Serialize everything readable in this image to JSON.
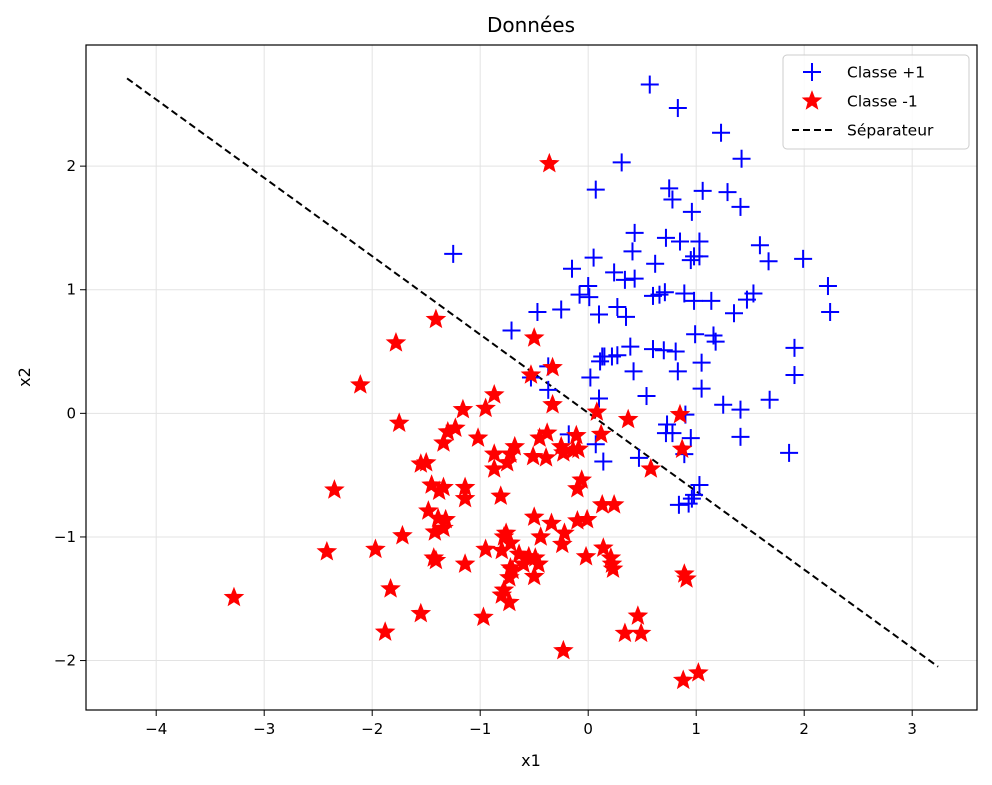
{
  "chart_data": {
    "type": "scatter",
    "title": "Données",
    "xlabel": "x1",
    "ylabel": "x2",
    "xlim": [
      -4.65,
      3.6
    ],
    "ylim": [
      -2.4,
      2.98
    ],
    "xticks": [
      -4,
      -3,
      -2,
      -1,
      0,
      1,
      2,
      3
    ],
    "yticks": [
      -2,
      -1,
      0,
      1,
      2
    ],
    "grid": true,
    "legend_position": "top-right",
    "series": [
      {
        "name": "Classe +1",
        "marker": "plus",
        "color": "#0000ff",
        "points": [
          [
            0.57,
            2.66
          ],
          [
            0.83,
            2.47
          ],
          [
            1.23,
            2.27
          ],
          [
            0.31,
            2.03
          ],
          [
            1.42,
            2.06
          ],
          [
            0.07,
            1.81
          ],
          [
            0.75,
            1.82
          ],
          [
            0.78,
            1.73
          ],
          [
            1.06,
            1.8
          ],
          [
            1.29,
            1.79
          ],
          [
            1.41,
            1.67
          ],
          [
            0.96,
            1.63
          ],
          [
            -1.25,
            1.29
          ],
          [
            0.43,
            1.46
          ],
          [
            0.72,
            1.42
          ],
          [
            0.85,
            1.39
          ],
          [
            1.03,
            1.39
          ],
          [
            0.41,
            1.31
          ],
          [
            0.98,
            1.27
          ],
          [
            0.95,
            1.24
          ],
          [
            1.59,
            1.36
          ],
          [
            1.67,
            1.23
          ],
          [
            1.99,
            1.25
          ],
          [
            -0.15,
            1.17
          ],
          [
            0.05,
            1.26
          ],
          [
            0.24,
            1.14
          ],
          [
            0.62,
            1.21
          ],
          [
            0.34,
            1.08
          ],
          [
            0.43,
            1.09
          ],
          [
            2.22,
            1.03
          ],
          [
            0.0,
            1.03
          ],
          [
            -0.08,
            0.96
          ],
          [
            0.01,
            0.94
          ],
          [
            0.6,
            0.95
          ],
          [
            0.66,
            0.96
          ],
          [
            0.71,
            0.98
          ],
          [
            0.89,
            0.97
          ],
          [
            0.98,
            0.91
          ],
          [
            1.14,
            0.91
          ],
          [
            1.47,
            0.92
          ],
          [
            1.53,
            0.97
          ],
          [
            2.24,
            0.82
          ],
          [
            -0.47,
            0.82
          ],
          [
            -0.25,
            0.84
          ],
          [
            0.1,
            0.8
          ],
          [
            0.27,
            0.86
          ],
          [
            0.35,
            0.78
          ],
          [
            1.35,
            0.81
          ],
          [
            -0.71,
            0.67
          ],
          [
            0.99,
            0.64
          ],
          [
            1.16,
            0.63
          ],
          [
            1.18,
            0.58
          ],
          [
            0.39,
            0.54
          ],
          [
            0.6,
            0.52
          ],
          [
            0.7,
            0.51
          ],
          [
            0.81,
            0.5
          ],
          [
            1.91,
            0.53
          ],
          [
            0.15,
            0.46
          ],
          [
            0.22,
            0.46
          ],
          [
            0.27,
            0.47
          ],
          [
            0.11,
            0.42
          ],
          [
            0.42,
            0.34
          ],
          [
            0.83,
            0.34
          ],
          [
            1.05,
            0.41
          ],
          [
            1.05,
            0.2
          ],
          [
            -0.37,
            0.38
          ],
          [
            -0.53,
            0.29
          ],
          [
            0.02,
            0.29
          ],
          [
            0.54,
            0.14
          ],
          [
            1.91,
            0.31
          ],
          [
            -0.37,
            0.19
          ],
          [
            1.25,
            0.07
          ],
          [
            1.41,
            0.03
          ],
          [
            1.68,
            0.11
          ],
          [
            0.9,
            -0.01
          ],
          [
            0.73,
            -0.09
          ],
          [
            0.78,
            -0.16
          ],
          [
            0.72,
            -0.16
          ],
          [
            0.95,
            -0.2
          ],
          [
            1.41,
            -0.19
          ],
          [
            0.07,
            -0.25
          ],
          [
            0.14,
            -0.39
          ],
          [
            0.47,
            -0.36
          ],
          [
            0.89,
            -0.33
          ],
          [
            1.86,
            -0.32
          ],
          [
            1.03,
            -0.58
          ],
          [
            0.84,
            -0.74
          ],
          [
            0.93,
            -0.73
          ],
          [
            0.98,
            -0.66
          ],
          [
            0.96,
            -0.69
          ],
          [
            -0.18,
            -0.17
          ],
          [
            0.1,
            0.12
          ],
          [
            0.13,
            0.46
          ],
          [
            1.03,
            1.27
          ]
        ]
      },
      {
        "name": "Classe -1",
        "marker": "star",
        "color": "#ff0000",
        "points": [
          [
            -0.36,
            2.02
          ],
          [
            -1.78,
            0.57
          ],
          [
            -1.41,
            0.76
          ],
          [
            -2.11,
            0.23
          ],
          [
            -0.5,
            0.61
          ],
          [
            -0.33,
            0.37
          ],
          [
            -0.53,
            0.31
          ],
          [
            -0.87,
            0.15
          ],
          [
            -1.75,
            -0.08
          ],
          [
            -1.16,
            0.03
          ],
          [
            -0.95,
            0.04
          ],
          [
            -0.33,
            0.07
          ],
          [
            0.08,
            0.01
          ],
          [
            -1.23,
            -0.12
          ],
          [
            -1.3,
            -0.15
          ],
          [
            -1.34,
            -0.24
          ],
          [
            -1.02,
            -0.2
          ],
          [
            -0.68,
            -0.27
          ],
          [
            -0.45,
            -0.2
          ],
          [
            -0.38,
            -0.16
          ],
          [
            -0.11,
            -0.18
          ],
          [
            0.12,
            -0.17
          ],
          [
            0.37,
            -0.05
          ],
          [
            0.85,
            -0.01
          ],
          [
            -0.87,
            -0.33
          ],
          [
            -0.72,
            -0.33
          ],
          [
            -0.51,
            -0.35
          ],
          [
            -0.25,
            -0.27
          ],
          [
            -0.23,
            -0.32
          ],
          [
            -0.14,
            -0.3
          ],
          [
            -0.09,
            -0.29
          ],
          [
            -1.5,
            -0.4
          ],
          [
            -1.55,
            -0.41
          ],
          [
            -0.87,
            -0.45
          ],
          [
            -0.75,
            -0.4
          ],
          [
            -0.39,
            -0.36
          ],
          [
            0.58,
            -0.45
          ],
          [
            0.87,
            -0.29
          ],
          [
            -2.35,
            -0.62
          ],
          [
            -1.45,
            -0.58
          ],
          [
            -1.38,
            -0.63
          ],
          [
            -1.34,
            -0.6
          ],
          [
            -1.14,
            -0.6
          ],
          [
            -1.14,
            -0.69
          ],
          [
            -0.81,
            -0.67
          ],
          [
            -0.06,
            -0.54
          ],
          [
            -0.1,
            -0.61
          ],
          [
            0.13,
            -0.74
          ],
          [
            0.24,
            -0.74
          ],
          [
            -1.48,
            -0.79
          ],
          [
            -1.39,
            -0.85
          ],
          [
            -1.32,
            -0.86
          ],
          [
            -1.34,
            -0.93
          ],
          [
            -1.42,
            -0.96
          ],
          [
            -1.72,
            -0.99
          ],
          [
            -0.5,
            -0.84
          ],
          [
            -0.34,
            -0.89
          ],
          [
            -0.1,
            -0.87
          ],
          [
            -0.01,
            -0.86
          ],
          [
            -0.76,
            -0.97
          ],
          [
            -0.78,
            -1.0
          ],
          [
            -0.72,
            -1.05
          ],
          [
            -0.44,
            -1.0
          ],
          [
            -0.22,
            -0.97
          ],
          [
            -0.24,
            -1.06
          ],
          [
            -1.97,
            -1.1
          ],
          [
            -2.42,
            -1.12
          ],
          [
            -0.95,
            -1.1
          ],
          [
            -0.8,
            -1.11
          ],
          [
            -0.64,
            -1.14
          ],
          [
            -0.55,
            -1.16
          ],
          [
            0.14,
            -1.09
          ],
          [
            -1.43,
            -1.17
          ],
          [
            -1.41,
            -1.19
          ],
          [
            -1.14,
            -1.22
          ],
          [
            -0.6,
            -1.22
          ],
          [
            -0.49,
            -1.17
          ],
          [
            -0.46,
            -1.22
          ],
          [
            -0.72,
            -1.25
          ],
          [
            -0.7,
            -1.27
          ],
          [
            -0.02,
            -1.16
          ],
          [
            0.21,
            -1.17
          ],
          [
            0.23,
            -1.26
          ],
          [
            0.22,
            -1.22
          ],
          [
            -0.73,
            -1.33
          ],
          [
            -0.5,
            -1.32
          ],
          [
            -0.78,
            -1.43
          ],
          [
            -0.8,
            -1.47
          ],
          [
            -0.73,
            -1.53
          ],
          [
            -1.83,
            -1.42
          ],
          [
            -3.28,
            -1.49
          ],
          [
            -1.55,
            -1.62
          ],
          [
            -0.97,
            -1.65
          ],
          [
            -1.88,
            -1.77
          ],
          [
            0.34,
            -1.78
          ],
          [
            0.49,
            -1.78
          ],
          [
            0.46,
            -1.64
          ],
          [
            0.89,
            -1.3
          ],
          [
            0.91,
            -1.34
          ],
          [
            -0.23,
            -1.92
          ],
          [
            0.88,
            -2.16
          ],
          [
            1.02,
            -2.1
          ]
        ]
      }
    ],
    "line": {
      "name": "Séparateur",
      "style": "dashed",
      "color": "#000000",
      "x": [
        -4.27,
        3.24
      ],
      "y": [
        2.71,
        -2.05
      ]
    }
  }
}
